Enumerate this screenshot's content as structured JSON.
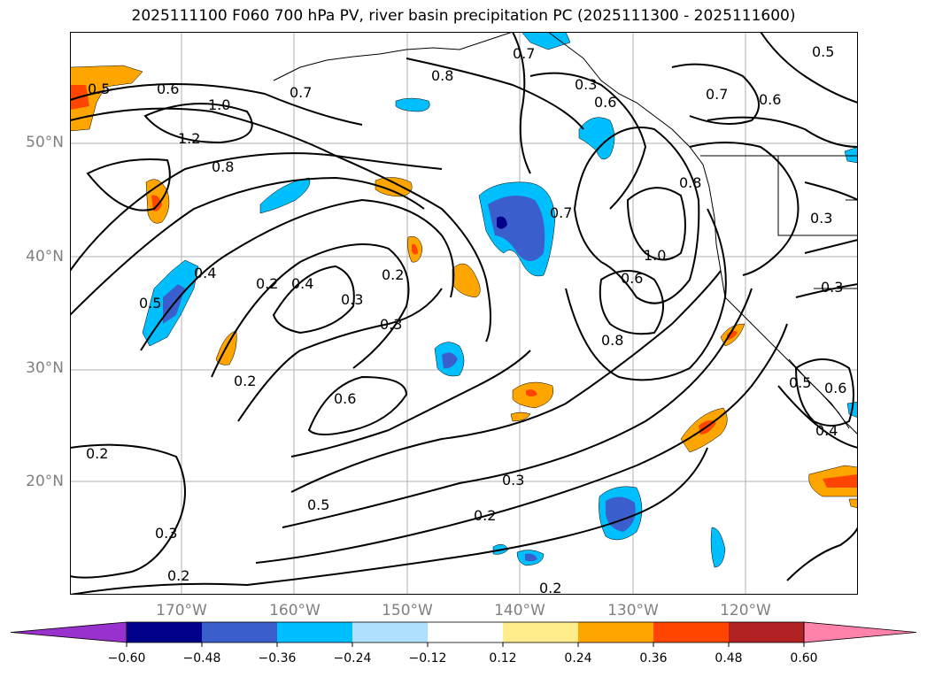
{
  "title": "2025111100 F060 700 hPa PV, river basin precipitation PC (2025111300 - 2025111600)",
  "latitude_labels": [
    "50°N",
    "40°N",
    "30°N",
    "20°N"
  ],
  "longitude_labels": [
    "170°W",
    "160°W",
    "150°W",
    "140°W",
    "130°W",
    "120°W"
  ],
  "contour_labels": [
    "0.5",
    "0.6",
    "0.7",
    "0.8",
    "0.7",
    "0.5",
    "0.3",
    "0.6",
    "0.7",
    "0.6",
    "1.0",
    "1.2",
    "0.8",
    "0.5",
    "0.4",
    "0.2",
    "0.4",
    "0.3",
    "0.2",
    "0.3",
    "0.7",
    "1.0",
    "0.6",
    "0.8",
    "0.8",
    "0.3",
    "0.3",
    "0.2",
    "0.6",
    "0.2",
    "0.3",
    "0.5",
    "0.3",
    "0.2",
    "0.2",
    "0.2",
    "0.5",
    "0.6",
    "0.4"
  ],
  "colorbar": {
    "colors": [
      "#9932cc",
      "#00008b",
      "#3a5fcd",
      "#00bfff",
      "#b0e2ff",
      "#ffffff",
      "#ffec8b",
      "#ffa500",
      "#ff4500",
      "#b22222",
      "#ff82ab"
    ],
    "tick_labels": [
      "−0.60",
      "−0.48",
      "−0.36",
      "−0.24",
      "−0.12",
      "0.12",
      "0.24",
      "0.36",
      "0.48",
      "0.60"
    ]
  },
  "colors": {
    "grid": "#b0b0b0",
    "coast": "#000000",
    "contour": "#000000",
    "axis_label": "#808080"
  }
}
